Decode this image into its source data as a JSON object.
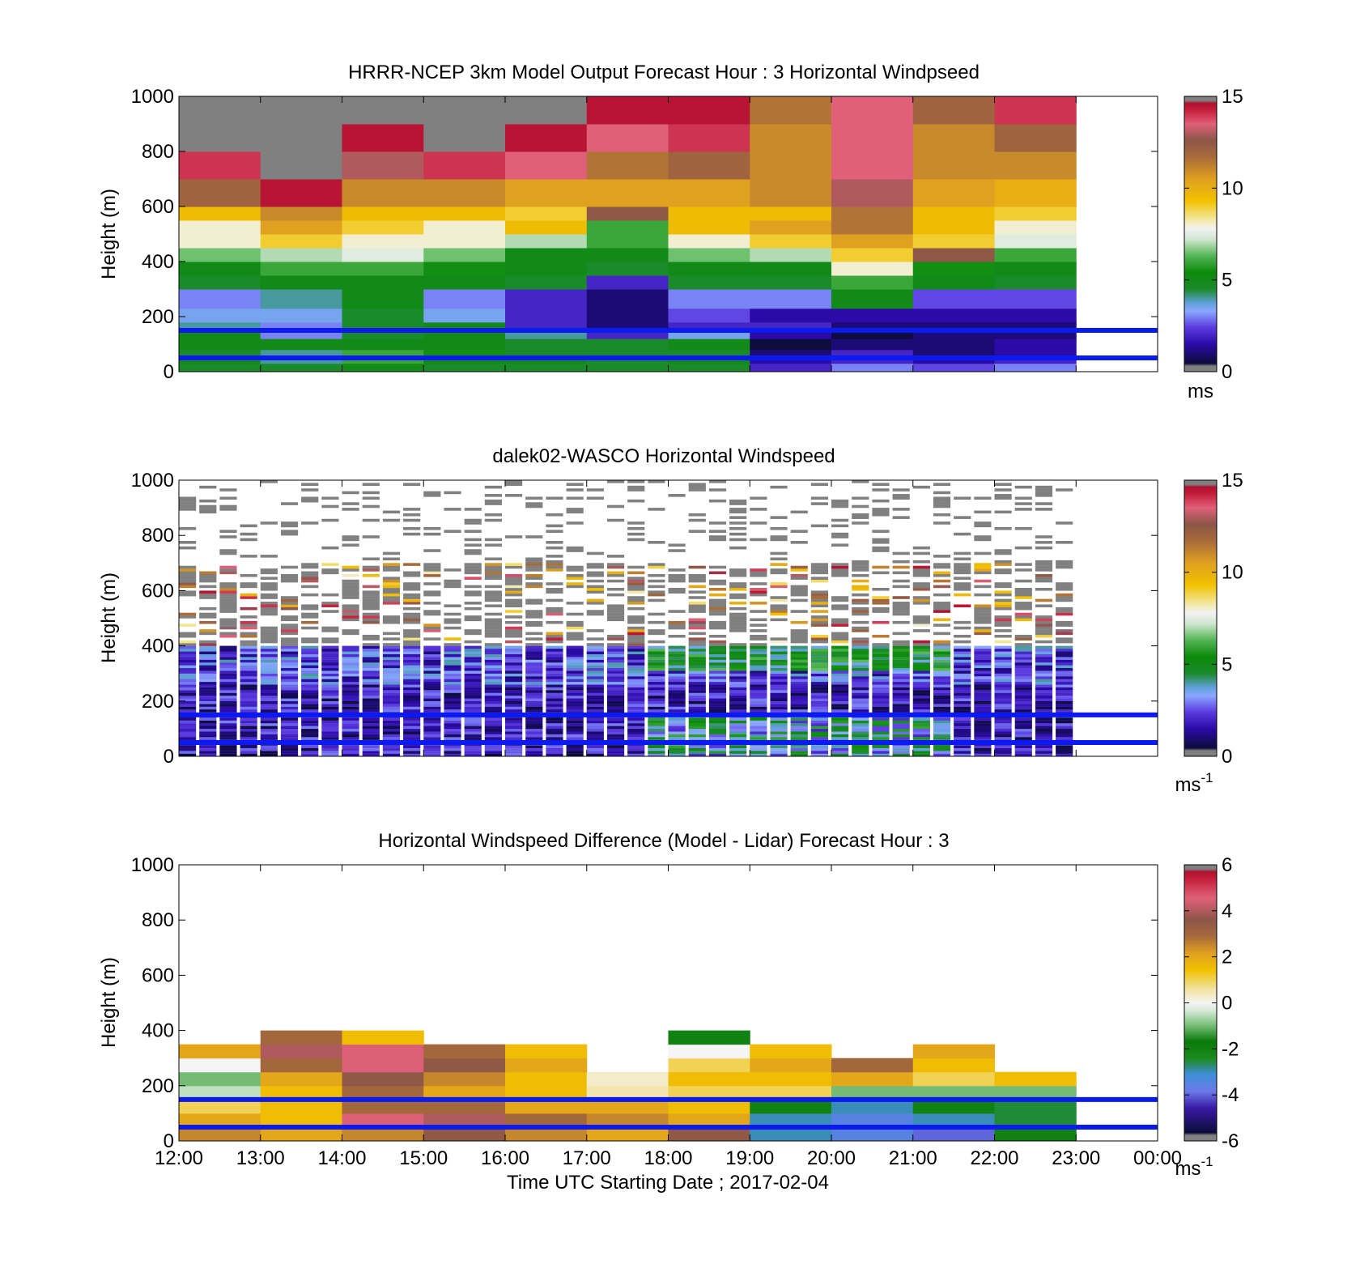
{
  "figure": {
    "xlabel": "Time UTC  Starting Date ; 2017-02-04",
    "xticks": [
      "12:00",
      "13:00",
      "14:00",
      "15:00",
      "16:00",
      "17:00",
      "18:00",
      "19:00",
      "20:00",
      "21:00",
      "22:00",
      "23:00",
      "00:00"
    ],
    "reference_lines_m": [
      50,
      150
    ],
    "reference_line_color": "#0a1af0"
  },
  "chart_data": [
    {
      "type": "heatmap",
      "title": "HRRR-NCEP 3km Model Output   Forecast Hour : 3 Horizontal Windpseed",
      "ylabel": "Height (m)",
      "ylim": [
        0,
        1000
      ],
      "yticks": [
        "0",
        "200",
        "400",
        "600",
        "800",
        "1000"
      ],
      "colorbar": {
        "ticks": [
          "0",
          "5",
          "10",
          "15"
        ],
        "unit": "ms",
        "range": [
          0,
          15
        ]
      },
      "time_bins": [
        "12:00",
        "13:00",
        "14:00",
        "15:00",
        "16:00",
        "17:00",
        "18:00",
        "19:00",
        "20:00",
        "21:00",
        "22:00"
      ],
      "height_bin_edges_m": [
        0,
        30,
        50,
        80,
        120,
        150,
        180,
        230,
        300,
        350,
        400,
        450,
        500,
        550,
        600,
        700,
        800,
        900,
        1000
      ],
      "values_ms": [
        [
          4.5,
          4.5,
          5.0,
          4.5,
          4.5,
          4.5,
          4.5,
          2.0,
          3.0,
          2.5,
          3.0
        ],
        [
          5.0,
          4.0,
          6.0,
          5.0,
          5.0,
          4.5,
          5.0,
          1.5,
          2.0,
          1.5,
          2.0
        ],
        [
          4.5,
          4.0,
          6.0,
          5.5,
          4.5,
          4.5,
          4.5,
          1.0,
          2.0,
          1.0,
          1.5
        ],
        [
          5.0,
          5.0,
          5.0,
          5.0,
          4.5,
          4.5,
          5.0,
          0.5,
          1.0,
          1.0,
          1.5
        ],
        [
          5.0,
          3.0,
          4.5,
          5.0,
          4.0,
          2.0,
          3.5,
          1.5,
          0.5,
          1.0,
          1.0
        ],
        [
          4.0,
          3.0,
          4.5,
          5.0,
          2.0,
          1.0,
          2.0,
          2.0,
          1.0,
          1.0,
          1.0
        ],
        [
          3.5,
          3.5,
          4.5,
          3.5,
          2.0,
          1.0,
          2.5,
          1.5,
          1.5,
          1.5,
          1.5
        ],
        [
          3.0,
          4.0,
          5.0,
          3.0,
          2.0,
          1.0,
          3.0,
          3.0,
          5.0,
          2.5,
          2.5
        ],
        [
          4.5,
          5.0,
          5.0,
          5.0,
          4.5,
          2.0,
          4.5,
          4.5,
          6.0,
          5.0,
          4.5
        ],
        [
          5.0,
          6.0,
          6.0,
          5.5,
          5.0,
          4.5,
          5.0,
          5.0,
          8.0,
          5.5,
          5.0
        ],
        [
          6.5,
          7.0,
          7.5,
          6.5,
          5.0,
          5.0,
          6.5,
          7.0,
          9.0,
          12.5,
          6.0
        ],
        [
          8.0,
          9.0,
          8.0,
          8.0,
          7.0,
          6.0,
          8.0,
          9.0,
          10.5,
          9.0,
          7.5
        ],
        [
          8.0,
          10.5,
          9.0,
          8.0,
          9.5,
          6.0,
          9.5,
          10.5,
          11.5,
          9.5,
          8.0
        ],
        [
          9.5,
          11.0,
          9.5,
          9.5,
          9.0,
          12.5,
          9.5,
          9.5,
          11.5,
          9.5,
          9.0
        ],
        [
          12.0,
          14.5,
          11.0,
          11.0,
          10.5,
          10.5,
          10.5,
          11.0,
          13.0,
          10.5,
          10.0
        ],
        [
          14.0,
          15.0,
          13.0,
          14.0,
          13.5,
          11.5,
          12.0,
          11.0,
          13.5,
          11.0,
          11.0
        ],
        [
          15.0,
          15.0,
          14.5,
          15.0,
          14.5,
          13.5,
          14.0,
          11.0,
          13.5,
          11.0,
          12.0
        ],
        [
          15.0,
          15.0,
          15.0,
          15.0,
          15.0,
          14.5,
          14.5,
          11.5,
          13.5,
          12.0,
          14.0
        ]
      ]
    },
    {
      "type": "heatmap",
      "title": "dalek02-WASCO  Horizontal Windspeed",
      "ylabel": "Height (m)",
      "ylim": [
        0,
        1000
      ],
      "yticks": [
        "0",
        "200",
        "400",
        "600",
        "800",
        "1000"
      ],
      "colorbar": {
        "ticks": [
          "0",
          "5",
          "10",
          "15"
        ],
        "unit": "ms",
        "unit_exponent": "-1",
        "range": [
          0,
          15
        ]
      },
      "time_range": [
        "12:00",
        "23:00"
      ],
      "column_profile_ms": [
        [
          0,
          1.5,
          2.0,
          2.5,
          3.5,
          5.0,
          6.5,
          15.0
        ],
        [
          0,
          1.5,
          2.0,
          2.5,
          3.0,
          4.5,
          6.0,
          15.0
        ]
      ],
      "profile_heights_m": [
        20,
        80,
        150,
        220,
        300,
        380,
        450,
        650
      ]
    },
    {
      "type": "heatmap",
      "title": "Horizontal Windspeed Difference (Model - Lidar) Forecast Hour : 3",
      "ylabel": "Height (m)",
      "ylim": [
        0,
        1000
      ],
      "yticks": [
        "0",
        "200",
        "400",
        "600",
        "800",
        "1000"
      ],
      "colorbar": {
        "ticks": [
          "-6",
          "-4",
          "-2",
          "0",
          "2",
          "4",
          "6"
        ],
        "unit": "ms",
        "unit_exponent": "-1",
        "range": [
          -6,
          6
        ]
      },
      "time_bins": [
        "12:00",
        "13:00",
        "14:00",
        "15:00",
        "16:00",
        "17:00",
        "18:00",
        "19:00",
        "20:00",
        "21:00",
        "22:00"
      ],
      "column_tops_m": [
        400,
        430,
        410,
        370,
        380,
        265,
        410,
        400,
        340,
        360,
        280
      ],
      "height_bin_edges_m": [
        0,
        50,
        100,
        150,
        200,
        250,
        300,
        350,
        400
      ],
      "values_ms": [
        [
          2.5,
          2.0,
          2.5,
          3.5,
          2.5,
          2.0,
          3.5,
          -3.0,
          -3.5,
          -4.0,
          -2.0
        ],
        [
          2.0,
          1.5,
          4.5,
          4.0,
          3.0,
          2.5,
          2.0,
          -3.0,
          -3.5,
          -3.0,
          -2.5
        ],
        [
          1.0,
          1.5,
          3.0,
          3.0,
          2.0,
          2.0,
          1.5,
          -2.0,
          -3.0,
          -2.0,
          -2.5
        ],
        [
          -0.5,
          1.5,
          3.0,
          2.0,
          1.5,
          0.5,
          1.0,
          1.0,
          -1.0,
          -1.0,
          -1.0
        ],
        [
          -1.0,
          2.0,
          3.5,
          2.5,
          1.5,
          0.3,
          1.5,
          1.5,
          2.0,
          1.0,
          1.5
        ],
        [
          0.0,
          3.0,
          4.5,
          3.5,
          2.0,
          null,
          1.0,
          2.0,
          3.0,
          1.5,
          null
        ],
        [
          2.0,
          4.0,
          4.5,
          3.0,
          1.5,
          null,
          0.0,
          1.5,
          null,
          2.0,
          null
        ],
        [
          null,
          3.0,
          1.5,
          null,
          null,
          null,
          -2.0,
          null,
          null,
          null,
          null
        ]
      ]
    }
  ]
}
